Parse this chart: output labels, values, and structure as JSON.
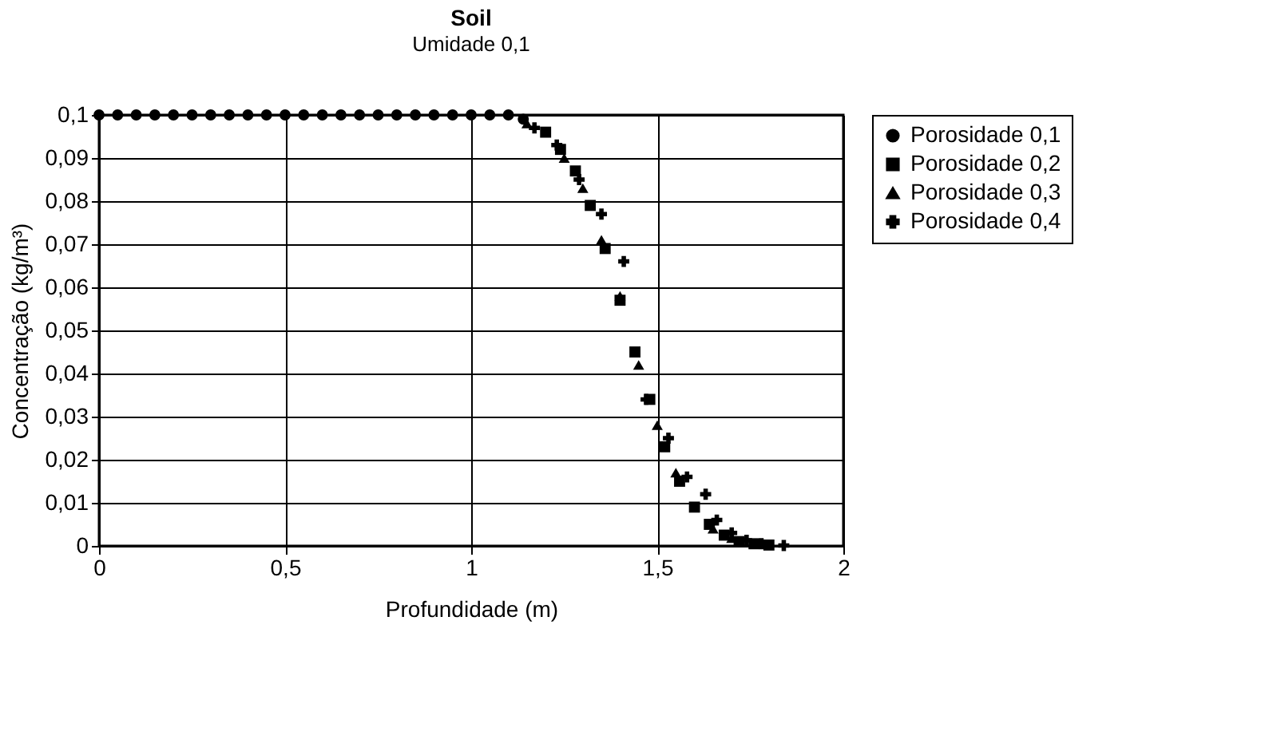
{
  "chart_data": {
    "type": "scatter",
    "title": "Soil",
    "subtitle": "Umidade 0,1",
    "xlabel": "Profundidade (m)",
    "ylabel": "Concentração (kg/m³)",
    "xlim": [
      0,
      2
    ],
    "ylim": [
      0,
      0.1
    ],
    "xticks": [
      0,
      {
        "value": 0.5,
        "label": "0,5"
      },
      1,
      {
        "value": 1.5,
        "label": "1,5"
      },
      2
    ],
    "yticks": [
      0,
      {
        "value": 0.01,
        "label": "0,01"
      },
      {
        "value": 0.02,
        "label": "0,02"
      },
      {
        "value": 0.03,
        "label": "0,03"
      },
      {
        "value": 0.04,
        "label": "0,04"
      },
      {
        "value": 0.05,
        "label": "0,05"
      },
      {
        "value": 0.06,
        "label": "0,06"
      },
      {
        "value": 0.07,
        "label": "0,07"
      },
      {
        "value": 0.08,
        "label": "0,08"
      },
      {
        "value": 0.09,
        "label": "0,09"
      },
      {
        "value": 0.1,
        "label": "0,1"
      }
    ],
    "grid": true,
    "legend": "right",
    "series": [
      {
        "name": "Porosidade 0,1",
        "color": "#000000",
        "marker": "circle",
        "x": [
          0,
          0.05,
          0.1,
          0.15,
          0.2,
          0.25,
          0.3,
          0.35,
          0.4,
          0.45,
          0.5,
          0.55,
          0.6,
          0.65,
          0.7,
          0.75,
          0.8,
          0.85,
          0.9,
          0.95,
          1.0,
          1.05,
          1.1,
          1.14
        ],
        "values": [
          0.1,
          0.1,
          0.1,
          0.1,
          0.1,
          0.1,
          0.1,
          0.1,
          0.1,
          0.1,
          0.1,
          0.1,
          0.1,
          0.1,
          0.1,
          0.1,
          0.1,
          0.1,
          0.1,
          0.1,
          0.1,
          0.1,
          0.1,
          0.099
        ]
      },
      {
        "name": "Porosidade 0,2",
        "color": "#000000",
        "marker": "square",
        "x": [
          1.2,
          1.24,
          1.28,
          1.32,
          1.36,
          1.4,
          1.44,
          1.48,
          1.52,
          1.56,
          1.6,
          1.64,
          1.68,
          1.72,
          1.76,
          1.8
        ],
        "values": [
          0.096,
          0.092,
          0.087,
          0.079,
          0.069,
          0.057,
          0.045,
          0.034,
          0.023,
          0.015,
          0.009,
          0.005,
          0.0025,
          0.001,
          0.0005,
          0.0002
        ]
      },
      {
        "name": "Porosidade 0,3",
        "color": "#000000",
        "marker": "triangle",
        "x": [
          1.15,
          1.25,
          1.3,
          1.35,
          1.4,
          1.45,
          1.5,
          1.55,
          1.65,
          1.7
        ],
        "values": [
          0.098,
          0.09,
          0.083,
          0.071,
          0.058,
          0.042,
          0.028,
          0.017,
          0.004,
          0.0018
        ]
      },
      {
        "name": "Porosidade 0,4",
        "color": "#000000",
        "marker": "cross",
        "x": [
          1.17,
          1.23,
          1.29,
          1.35,
          1.41,
          1.47,
          1.53,
          1.58,
          1.63,
          1.66,
          1.7,
          1.74,
          1.78,
          1.84
        ],
        "values": [
          0.097,
          0.093,
          0.085,
          0.077,
          0.066,
          0.034,
          0.025,
          0.016,
          0.012,
          0.006,
          0.003,
          0.0013,
          0.0005,
          0.0001
        ]
      }
    ]
  }
}
